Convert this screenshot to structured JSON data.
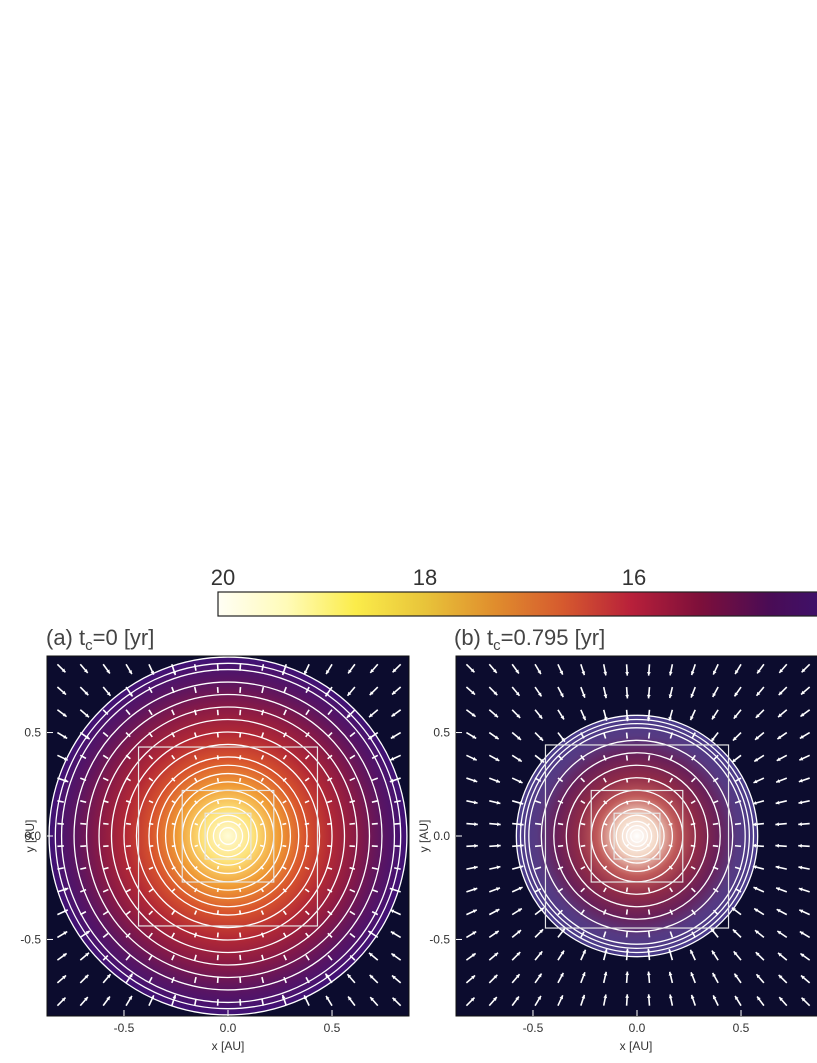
{
  "colorbar": {
    "tick_labels": [
      "20",
      "18",
      "16"
    ],
    "tick_values": [
      20,
      18,
      16
    ],
    "range": [
      20,
      14.2
    ],
    "stops": [
      "#fffef5",
      "#fffbb8",
      "#fbec4a",
      "#e8c43a",
      "#e08e2d",
      "#d65a2e",
      "#b8203a",
      "#7d0f3a",
      "#4a0c55",
      "#3a1270"
    ]
  },
  "chart_data": [
    {
      "type": "heatmap",
      "panel_label": "(a) t",
      "subscript": "c",
      "time_text": "=0 [yr]",
      "xlabel": "x [AU]",
      "ylabel": "y [AU]",
      "xticks": [
        "-0.5",
        "0.0",
        "0.5"
      ],
      "yticks": [
        "0.5",
        "0.0",
        "-0.5"
      ],
      "xlim": [
        -0.87,
        0.87
      ],
      "ylim": [
        -0.87,
        0.87
      ],
      "disk_radius": 0.86,
      "contour_radii": [
        0.86,
        0.83,
        0.8,
        0.74,
        0.68,
        0.62,
        0.56,
        0.5,
        0.44,
        0.38,
        0.34,
        0.3,
        0.26,
        0.22,
        0.18,
        0.14,
        0.1,
        0.07,
        0.04
      ],
      "nested_boxes_halfwidth": [
        0.43,
        0.22,
        0.11
      ],
      "colors": [
        "#fffcd8",
        "#fde27a",
        "#ef9a35",
        "#d8542d",
        "#b32935",
        "#8a1a45",
        "#5c1560",
        "#3f1276"
      ]
    },
    {
      "type": "heatmap",
      "panel_label": "(b) t",
      "subscript": "c",
      "time_text": "=0.795 [yr]",
      "xlabel": "x [AU]",
      "ylabel": "y [AU]",
      "xticks": [
        "-0.5",
        "0.0",
        "0.5"
      ],
      "yticks": [
        "0.5",
        "0.0",
        "-0.5"
      ],
      "xlim": [
        -0.87,
        0.87
      ],
      "ylim": [
        -0.87,
        0.87
      ],
      "disk_radius": 0.58,
      "contour_radii": [
        0.58,
        0.56,
        0.54,
        0.52,
        0.46,
        0.4,
        0.34,
        0.28,
        0.22,
        0.17,
        0.13,
        0.1,
        0.07,
        0.05,
        0.03
      ],
      "nested_boxes_halfwidth": [
        0.44,
        0.22,
        0.11
      ],
      "colors": [
        "#ffffff",
        "#f3d6c4",
        "#c05a5a",
        "#8e2a48",
        "#6a2058",
        "#563a82",
        "#4a3c8c"
      ]
    }
  ]
}
